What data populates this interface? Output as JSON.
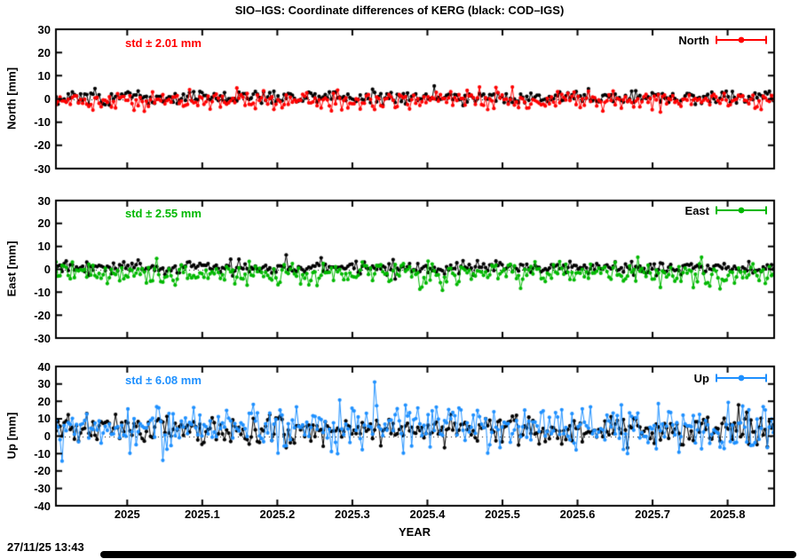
{
  "title": "SIO–IGS: Coordinate differences of KERG (black: COD–IGS)",
  "timestamp": "27/11/25 13:43",
  "x_axis": {
    "label": "YEAR",
    "start": 2024.905,
    "end": 2025.862,
    "points_per_year": 365,
    "ticks": [
      "2025",
      "2025.1",
      "2025.2",
      "2025.3",
      "2025.4",
      "2025.5",
      "2025.6",
      "2025.7",
      "2025.8"
    ],
    "tick_values": [
      2025.0,
      2025.1,
      2025.2,
      2025.3,
      2025.4,
      2025.5,
      2025.6,
      2025.7,
      2025.8
    ]
  },
  "chart_data": [
    {
      "type": "scatter",
      "name": "North",
      "ylabel": "North [mm]",
      "ylim": [
        -30,
        30
      ],
      "yticks": [
        "30",
        "20",
        "10",
        "0",
        "-10",
        "-20",
        "-30"
      ],
      "ytick_values": [
        30,
        20,
        10,
        0,
        -10,
        -20,
        -30
      ],
      "std_label": "std ± 2.01 mm",
      "std_value": 2.01,
      "legend": {
        "label": "North",
        "color": "#ff0000"
      },
      "grid": false,
      "zero_line": "dotted",
      "series": [
        {
          "name": "COD–IGS",
          "color": "#000000",
          "mean": 0.7,
          "std": 1.5,
          "tail": 0.0,
          "seed": 101
        },
        {
          "name": "SIO–IGS",
          "color": "#ff0000",
          "mean": -0.7,
          "std": 2.01,
          "tail": 0.0,
          "seed": 102
        }
      ]
    },
    {
      "type": "scatter",
      "name": "East",
      "ylabel": "East [mm]",
      "ylim": [
        -30,
        30
      ],
      "yticks": [
        "30",
        "20",
        "10",
        "0",
        "-10",
        "-20",
        "-30"
      ],
      "ytick_values": [
        30,
        20,
        10,
        0,
        -10,
        -20,
        -30
      ],
      "std_label": "std ± 2.55 mm",
      "std_value": 2.55,
      "legend": {
        "label": "East",
        "color": "#00b800"
      },
      "grid": false,
      "zero_line": "dotted",
      "series": [
        {
          "name": "COD–IGS",
          "color": "#000000",
          "mean": 0.7,
          "std": 1.4,
          "tail": 0.0,
          "seed": 201
        },
        {
          "name": "SIO–IGS",
          "color": "#00b800",
          "mean": -1.8,
          "std": 2.55,
          "tail": 0.02,
          "seed": 202
        }
      ]
    },
    {
      "type": "scatter",
      "name": "Up",
      "ylabel": "Up [mm]",
      "ylim": [
        -40,
        40
      ],
      "yticks": [
        "40",
        "30",
        "20",
        "10",
        "0",
        "-10",
        "-20",
        "-30",
        "-40"
      ],
      "ytick_values": [
        40,
        30,
        20,
        10,
        0,
        -10,
        -20,
        -30,
        -40
      ],
      "std_label": "std ± 6.08 mm",
      "std_value": 6.08,
      "legend": {
        "label": "Up",
        "color": "#1e90ff"
      },
      "grid": false,
      "zero_line": "dotted",
      "series": [
        {
          "name": "COD–IGS",
          "color": "#000000",
          "mean": 3.5,
          "std": 4.2,
          "tail": 0.01,
          "seed": 301
        },
        {
          "name": "SIO–IGS",
          "color": "#1e90ff",
          "mean": 5.5,
          "std": 6.08,
          "tail": 0.03,
          "seed": 302
        }
      ]
    }
  ]
}
